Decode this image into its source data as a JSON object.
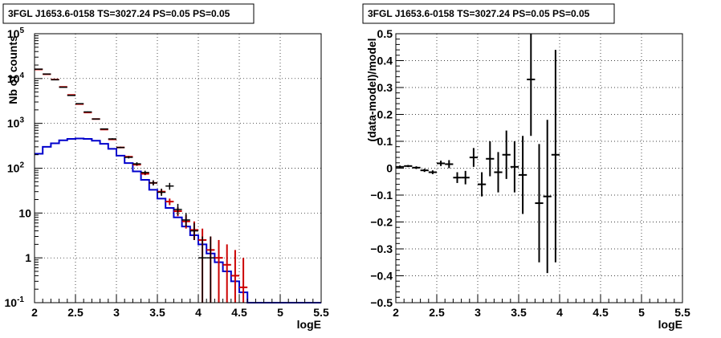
{
  "chart_data": [
    {
      "type": "line",
      "title": "3FGL J1653.6-0158 TS=3027.24 PS=0.05 PS=0.05",
      "xlabel": "logE",
      "ylabel": "Nb of counts",
      "xlim": [
        2,
        5.5
      ],
      "ylim": [
        0.1,
        100000
      ],
      "yscale": "log",
      "grid": true,
      "x_tick_labels": [
        "2",
        "2.5",
        "3",
        "3.5",
        "4",
        "4.5",
        "5",
        "5.5"
      ],
      "y_tick_labels": [
        "10^-1",
        "1",
        "10",
        "10^2",
        "10^3",
        "10^4",
        "10^5"
      ],
      "x_ticks": [
        2,
        2.5,
        3,
        3.5,
        4,
        4.5,
        5,
        5.5
      ],
      "y_ticks": [
        0.1,
        1,
        10,
        100,
        1000,
        10000,
        100000
      ],
      "bin_edges": [
        2.0,
        2.1,
        2.2,
        2.3,
        2.4,
        2.5,
        2.6,
        2.7,
        2.8,
        2.9,
        3.0,
        3.1,
        3.2,
        3.3,
        3.4,
        3.5,
        3.6,
        3.7,
        3.8,
        3.9,
        4.0,
        4.1,
        4.2,
        4.3,
        4.4,
        4.5,
        4.6,
        4.7,
        4.8,
        4.9,
        5.0,
        5.1,
        5.2,
        5.3,
        5.4,
        5.5
      ],
      "series": [
        {
          "color": "#cc0000",
          "x": [
            2.05,
            2.15,
            2.25,
            2.35,
            2.45,
            2.55,
            2.65,
            2.75,
            2.85,
            2.95,
            3.05,
            3.15,
            3.25,
            3.35,
            3.45,
            3.55,
            3.65,
            3.75,
            3.85,
            3.95,
            4.05,
            4.15,
            4.25,
            4.35,
            4.45,
            4.55
          ],
          "y": [
            16000,
            12500,
            9500,
            6500,
            4300,
            2700,
            1750,
            1250,
            730,
            440,
            290,
            180,
            120,
            75,
            47,
            30,
            18,
            11,
            6.5,
            4.2,
            2.5,
            1.5,
            1.0,
            0.7,
            0.4,
            0.22
          ],
          "err": [
            [
              15700,
              16300
            ],
            [
              12300,
              12700
            ],
            [
              9400,
              9600
            ],
            [
              6400,
              6600
            ],
            [
              4250,
              4350
            ],
            [
              2660,
              2740
            ],
            [
              1720,
              1780
            ],
            [
              1230,
              1270
            ],
            [
              715,
              745
            ],
            [
              430,
              450
            ],
            [
              280,
              300
            ],
            [
              172,
              188
            ],
            [
              113,
              127
            ],
            [
              70,
              80
            ],
            [
              43,
              51
            ],
            [
              26,
              34
            ],
            [
              15,
              21
            ],
            [
              8.5,
              13.5
            ],
            [
              4.5,
              9
            ],
            [
              2.5,
              6.5
            ],
            [
              0.1,
              4.5
            ],
            [
              0.1,
              3.0
            ],
            [
              0.1,
              2.5
            ],
            [
              0.1,
              2.0
            ],
            [
              0.1,
              1.5
            ],
            [
              0.1,
              1.0
            ]
          ]
        },
        {
          "color": "#000000",
          "x": [
            2.05,
            2.15,
            2.25,
            2.35,
            2.45,
            2.55,
            2.65,
            2.75,
            2.85,
            2.95,
            3.05,
            3.15,
            3.25,
            3.35,
            3.45,
            3.55,
            3.65,
            3.75,
            3.85,
            3.95,
            4.05,
            4.15
          ],
          "y": [
            16200,
            12600,
            9400,
            6400,
            4200,
            2750,
            1800,
            1250,
            750,
            450,
            290,
            175,
            125,
            80,
            47,
            29,
            40,
            12,
            7,
            4,
            1,
            1
          ],
          "err": [
            [
              16000,
              16400
            ],
            [
              12400,
              12800
            ],
            [
              9300,
              9500
            ],
            [
              6300,
              6500
            ],
            [
              4150,
              4250
            ],
            [
              2700,
              2800
            ],
            [
              1760,
              1840
            ],
            [
              1220,
              1280
            ],
            [
              730,
              770
            ],
            [
              435,
              465
            ],
            [
              280,
              300
            ],
            [
              165,
              185
            ],
            [
              114,
              136
            ],
            [
              72,
              88
            ],
            [
              41,
              54
            ],
            [
              24,
              35
            ],
            [
              33,
              47
            ],
            [
              9,
              16
            ],
            [
              5,
              10
            ],
            [
              2.5,
              6
            ],
            [
              0.1,
              3
            ],
            [
              0.1,
              3
            ]
          ]
        },
        {
          "color": "#0000cc",
          "drawstyle": "steps",
          "y": [
            210,
            300,
            360,
            420,
            450,
            460,
            450,
            410,
            350,
            270,
            190,
            130,
            85,
            55,
            33,
            21,
            13,
            8,
            5,
            3.2,
            2.0,
            1.25,
            0.8,
            0.5,
            0.3,
            0.17,
            0.1,
            0.1,
            0.1,
            0.1,
            0.1,
            0.1,
            0.1,
            0.1,
            0.1
          ]
        }
      ]
    },
    {
      "type": "scatter",
      "title": "3FGL J1653.6-0158 TS=3027.24 PS=0.05 PS=0.05",
      "xlabel": "logE",
      "ylabel": "(data-model)/model",
      "xlim": [
        2,
        5.5
      ],
      "ylim": [
        -0.5,
        0.5
      ],
      "grid": true,
      "x_tick_labels": [
        "2",
        "2.5",
        "3",
        "3.5",
        "4",
        "4.5",
        "5",
        "5.5"
      ],
      "y_tick_labels": [
        "−0.5",
        "−0.4",
        "−0.3",
        "−0.2",
        "−0.1",
        "0",
        "0.1",
        "0.2",
        "0.3",
        "0.4",
        "0.5"
      ],
      "x_ticks": [
        2,
        2.5,
        3,
        3.5,
        4,
        4.5,
        5,
        5.5
      ],
      "y_ticks": [
        -0.5,
        -0.4,
        -0.3,
        -0.2,
        -0.1,
        0,
        0.1,
        0.2,
        0.3,
        0.4,
        0.5
      ],
      "series": [
        {
          "color": "#000000",
          "x": [
            2.05,
            2.15,
            2.25,
            2.35,
            2.45,
            2.55,
            2.65,
            2.75,
            2.85,
            2.95,
            3.05,
            3.15,
            3.25,
            3.35,
            3.45,
            3.55,
            3.65,
            3.75,
            3.85,
            3.95
          ],
          "y": [
            0.005,
            0.008,
            0.002,
            -0.008,
            -0.015,
            0.018,
            0.015,
            -0.035,
            -0.035,
            0.04,
            -0.06,
            0.035,
            -0.015,
            0.05,
            0.005,
            -0.025,
            0.33,
            -0.13,
            -0.105,
            0.05
          ],
          "err": [
            [
              0.0,
              0.01
            ],
            [
              0.004,
              0.012
            ],
            [
              -0.003,
              0.007
            ],
            [
              -0.014,
              -0.002
            ],
            [
              -0.022,
              -0.008
            ],
            [
              0.008,
              0.028
            ],
            [
              0.0,
              0.03
            ],
            [
              -0.055,
              -0.015
            ],
            [
              -0.06,
              -0.01
            ],
            [
              0.005,
              0.075
            ],
            [
              -0.105,
              -0.015
            ],
            [
              -0.03,
              0.1
            ],
            [
              -0.09,
              0.06
            ],
            [
              -0.04,
              0.14
            ],
            [
              -0.09,
              0.1
            ],
            [
              -0.17,
              0.12
            ],
            [
              0.12,
              0.5
            ],
            [
              -0.35,
              0.09
            ],
            [
              -0.39,
              0.18
            ],
            [
              -0.35,
              0.44
            ]
          ]
        }
      ]
    }
  ]
}
